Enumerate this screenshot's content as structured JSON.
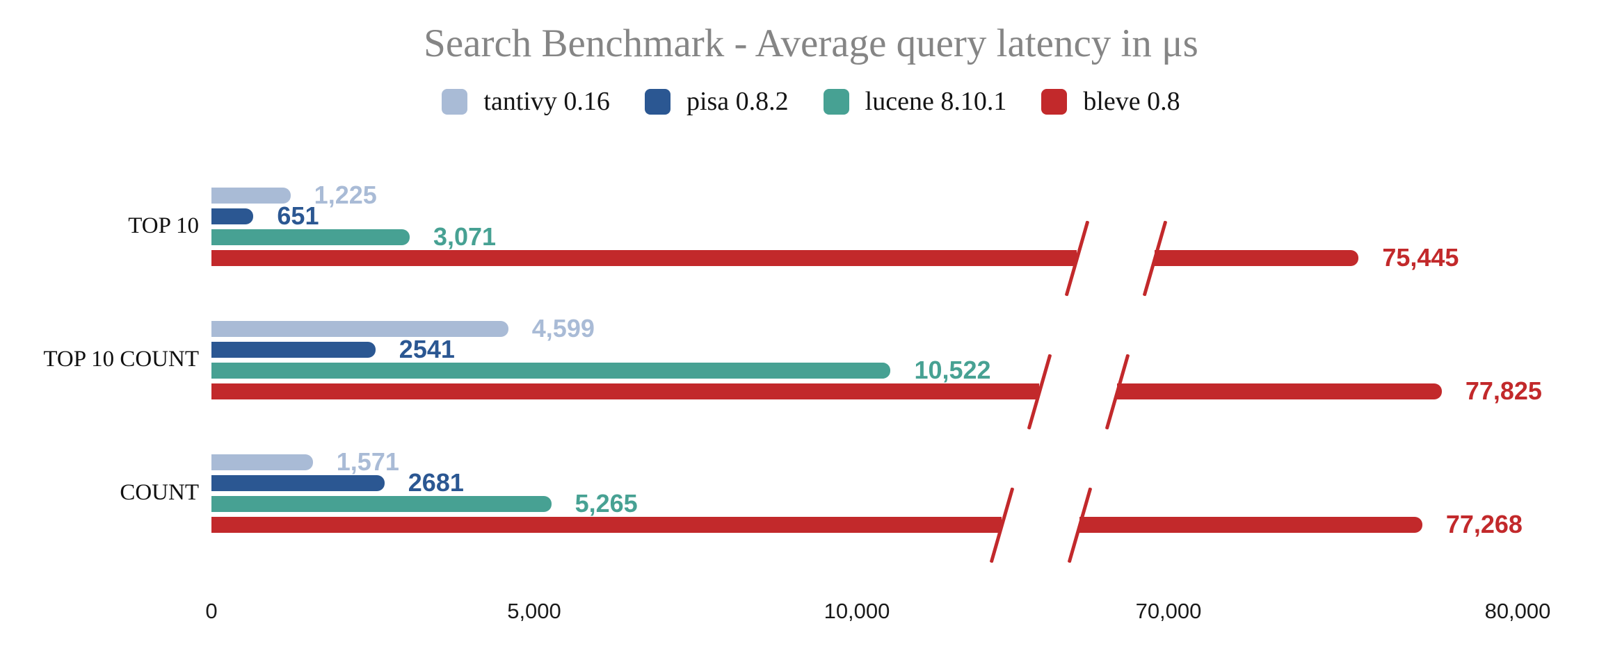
{
  "title": {
    "text": "Search Benchmark - Average query latency in μs",
    "color": "#858585"
  },
  "legend": [
    {
      "label": "tantivy 0.16",
      "color": "#a9bbd6"
    },
    {
      "label": "pisa 0.8.2",
      "color": "#2b5792"
    },
    {
      "label": "lucene 8.10.1",
      "color": "#47a193"
    },
    {
      "label": "bleve 0.8",
      "color": "#c2292b"
    }
  ],
  "chart_data": {
    "type": "bar",
    "orientation": "horizontal",
    "title": "Search Benchmark - Average query latency in μs",
    "xlabel": "",
    "ylabel": "",
    "grid": false,
    "legend_position": "top",
    "categories": [
      "TOP 10",
      "TOP 10 COUNT",
      "COUNT"
    ],
    "series": [
      {
        "name": "tantivy 0.16",
        "color": "#a9bbd6",
        "values": [
          1225,
          4599,
          1571
        ],
        "labels": [
          "1,225",
          "4,599",
          "1,571"
        ]
      },
      {
        "name": "pisa 0.8.2",
        "color": "#2b5792",
        "values": [
          651,
          2541,
          2681
        ],
        "labels": [
          "651",
          "2541",
          "2681"
        ]
      },
      {
        "name": "lucene 8.10.1",
        "color": "#47a193",
        "values": [
          3071,
          10522,
          5265
        ],
        "labels": [
          "3,071",
          "10,522",
          "5,265"
        ]
      },
      {
        "name": "bleve 0.8",
        "color": "#c2292b",
        "values": [
          75445,
          77825,
          77268
        ],
        "labels": [
          "75,445",
          "77,825",
          "77,268"
        ]
      }
    ],
    "x_axis": {
      "ticks": [
        {
          "value": 0,
          "label": "0"
        },
        {
          "value": 5000,
          "label": "5,000"
        },
        {
          "value": 10000,
          "label": "10,000"
        },
        {
          "value": 70000,
          "label": "70,000"
        },
        {
          "value": 80000,
          "label": "80,000"
        }
      ],
      "break": {
        "left_domain": [
          0,
          13500
        ],
        "right_domain": [
          70000,
          80000
        ]
      }
    }
  }
}
